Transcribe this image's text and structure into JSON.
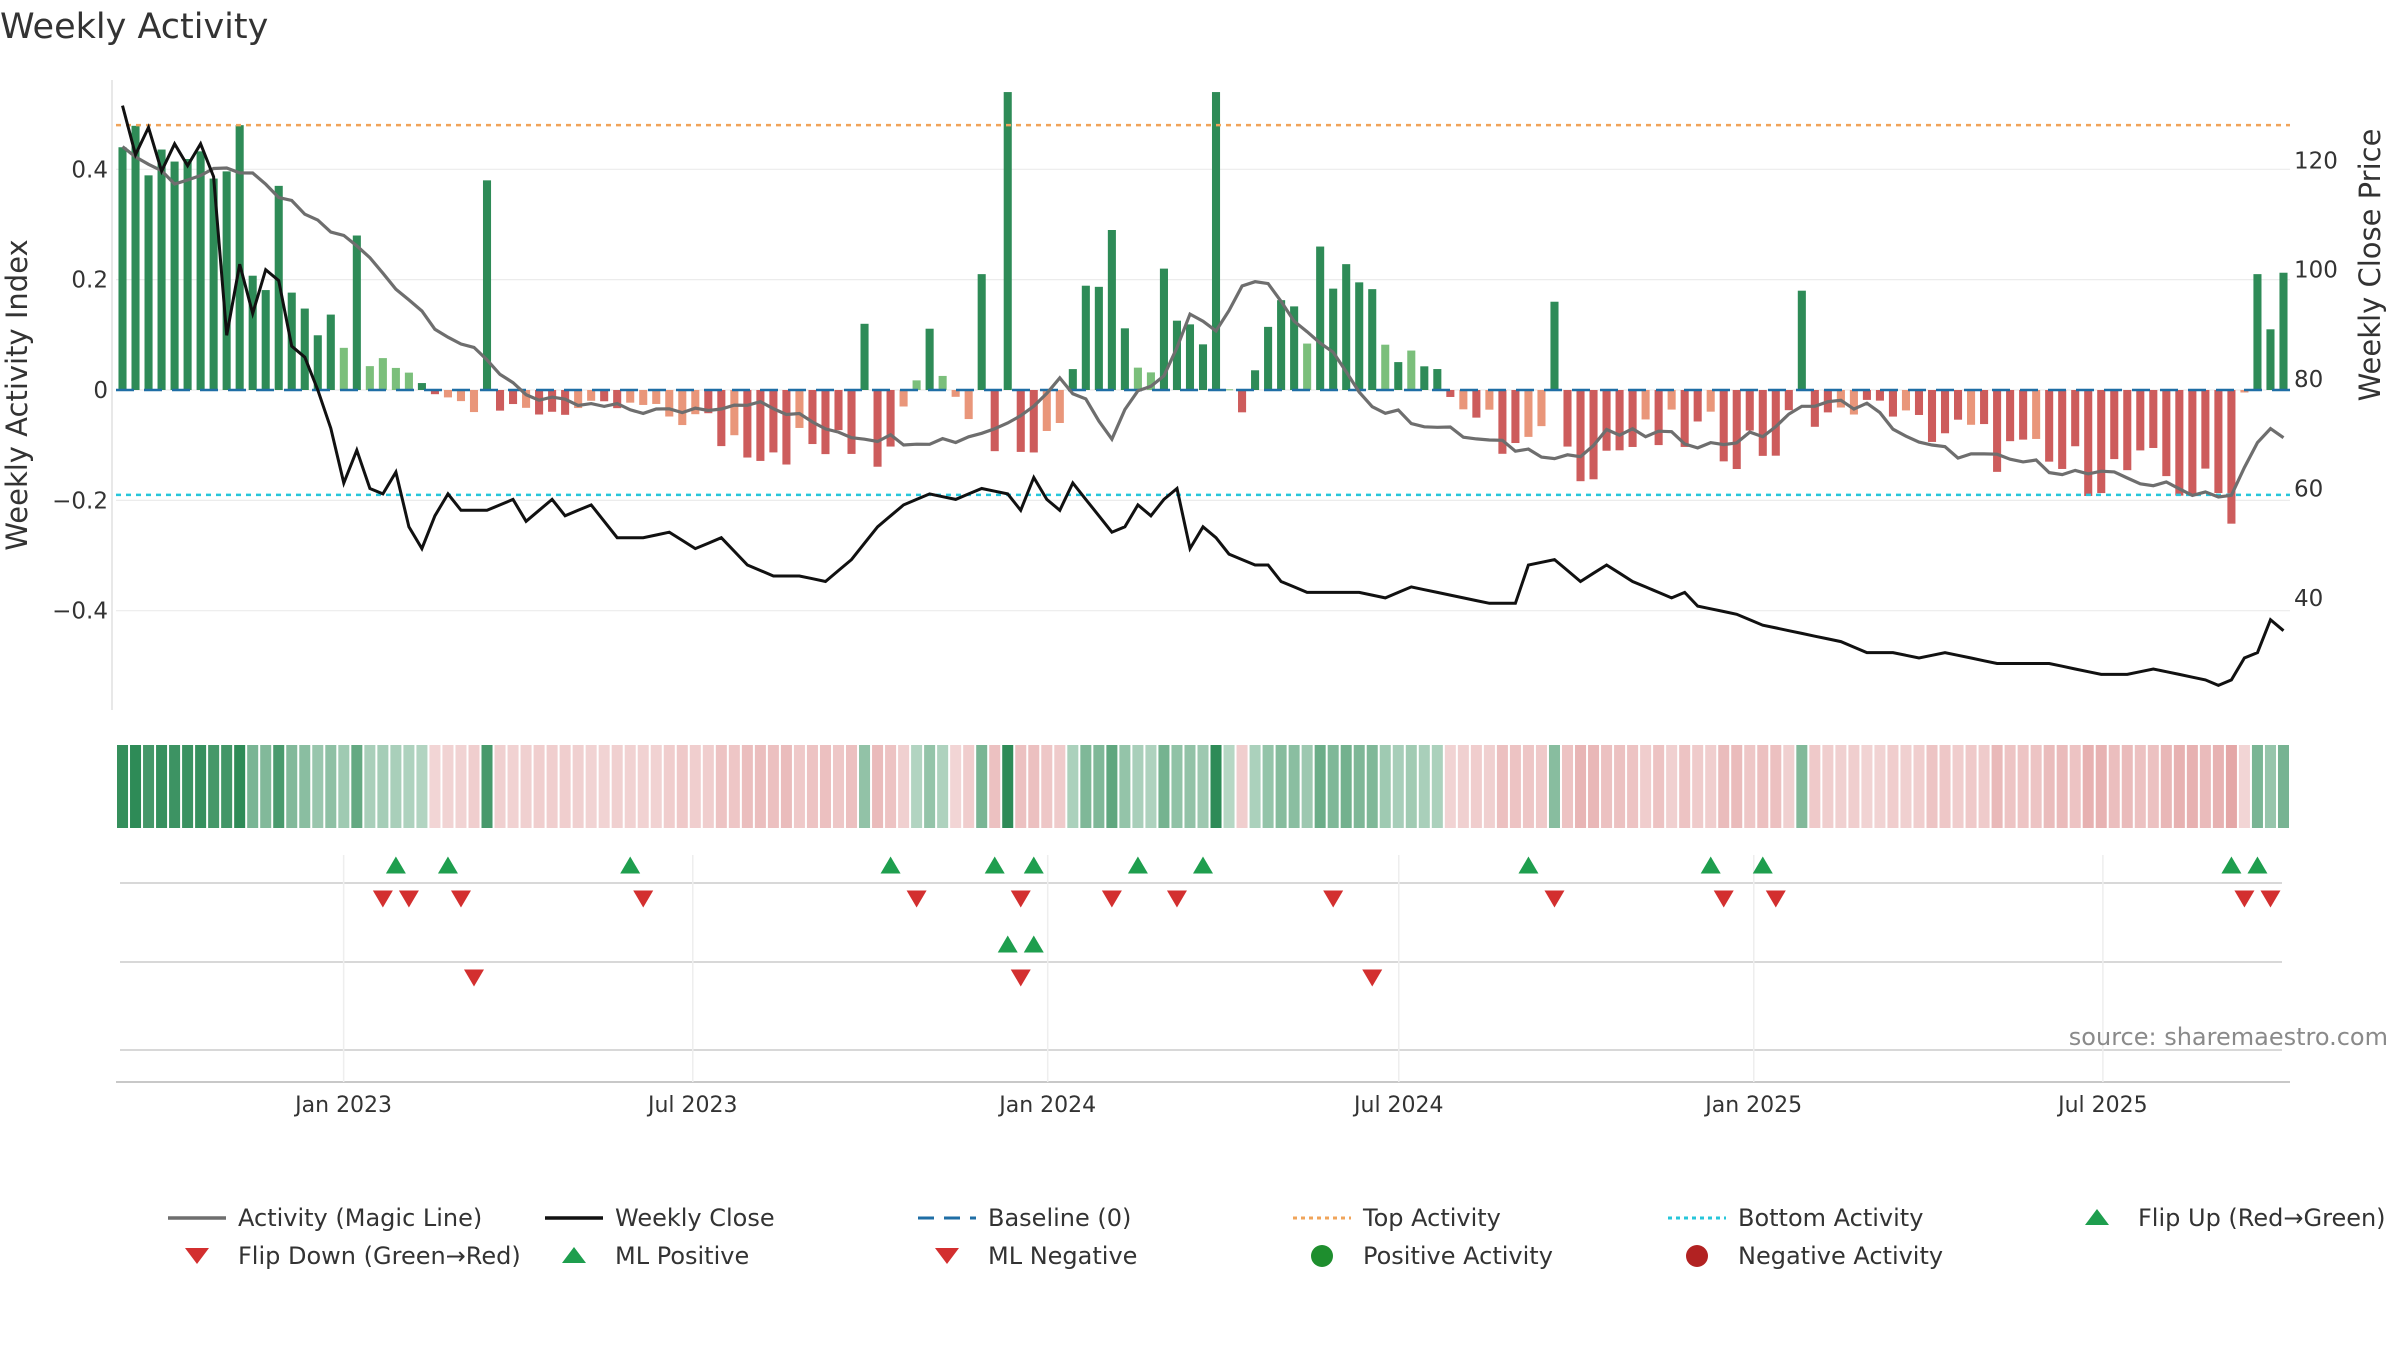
{
  "colors": {
    "green_dark": "#2e8b57",
    "green_light": "#7bbf7b",
    "red_dark": "#cd5c5c",
    "red_light": "#e9967a",
    "magic_line": "#6e6e6e",
    "close_line": "#111111",
    "baseline": "#1f6ea5",
    "top_line": "#f0a45a",
    "bottom_line": "#26c6da",
    "flip_up": "#1e9e4e",
    "flip_down": "#d32f2f",
    "ml_pos": "#1e9e4e",
    "ml_neg": "#d32f2f",
    "pos_activity": "#1e8e2e",
    "neg_activity": "#b22222"
  },
  "chart_data": {
    "type": "bar",
    "title": "Weekly Activity",
    "ylabel": "Weekly Activity Index",
    "y2label": "Weekly Close Price",
    "ylim": [
      -0.58,
      0.58
    ],
    "y2lim": [
      19.5,
      136.5
    ],
    "yticks": [
      0.4,
      0.2,
      0,
      -0.2,
      -0.4
    ],
    "ytick_labels": [
      "0.4",
      "0.2",
      "0",
      "−0.2",
      "−0.4"
    ],
    "y2ticks": [
      120,
      100,
      80,
      60,
      40
    ],
    "y2tick_labels": [
      "120",
      "100",
      "80",
      "60",
      "40"
    ],
    "x_start": "2022-09-05",
    "x_end": "2025-10-06",
    "xticks": [
      "2023-01-01",
      "2023-07-01",
      "2024-01-01",
      "2024-07-01",
      "2025-01-01",
      "2025-07-01"
    ],
    "xtick_labels": [
      "Jan 2023",
      "Jul 2023",
      "Jan 2024",
      "Jul 2024",
      "Jan 2025",
      "Jul 2025"
    ],
    "top_activity": 0.48,
    "bottom_activity": -0.19,
    "baseline": 0,
    "activity_series": [
      {
        "start": 0,
        "points": [
          [
            0,
            0.44
          ],
          [
            9,
            0.41
          ],
          [
            10,
            0.16
          ],
          [
            20,
            0.05
          ],
          [
            26,
            -0.02
          ],
          [
            30,
            -0.04
          ],
          [
            40,
            -0.03
          ],
          [
            46,
            -0.08
          ],
          [
            52,
            -0.1
          ],
          [
            58,
            -0.12
          ],
          [
            62,
            0.08
          ],
          [
            66,
            -0.08
          ],
          [
            70,
            -0.1
          ],
          [
            72,
            -0.05
          ],
          [
            74,
            0.22
          ],
          [
            78,
            0.05
          ],
          [
            82,
            0.16
          ],
          [
            84,
            0.05
          ],
          [
            86,
            -0.04
          ],
          [
            88,
            0.12
          ],
          [
            92,
            0.12
          ],
          [
            94,
            0.2
          ],
          [
            96,
            0.14
          ],
          [
            100,
            0.05
          ],
          [
            106,
            -0.1
          ],
          [
            112,
            -0.12
          ],
          [
            120,
            -0.08
          ],
          [
            126,
            -0.1
          ],
          [
            134,
            -0.02
          ],
          [
            142,
            -0.09
          ],
          [
            148,
            -0.14
          ],
          [
            156,
            -0.15
          ],
          [
            162,
            -0.2
          ],
          [
            164,
            0.19
          ]
        ]
      }
    ],
    "activity_overrides": [
      [
        68,
        0.54
      ],
      [
        84,
        0.54
      ],
      [
        9,
        0.48
      ],
      [
        0,
        0.44
      ],
      [
        18,
        0.28
      ],
      [
        28,
        0.38
      ],
      [
        76,
        0.29
      ],
      [
        92,
        0.26
      ],
      [
        80,
        0.22
      ],
      [
        12,
        0.37
      ],
      [
        66,
        0.21
      ],
      [
        129,
        0.18
      ],
      [
        110,
        0.16
      ],
      [
        57,
        0.12
      ],
      [
        164,
        0.21
      ],
      [
        165,
        0.11
      ]
    ],
    "magic_line_points": [
      [
        0,
        0.44
      ],
      [
        4,
        0.38
      ],
      [
        9,
        0.4
      ],
      [
        12,
        0.35
      ],
      [
        18,
        0.26
      ],
      [
        24,
        0.12
      ],
      [
        28,
        0.05
      ],
      [
        32,
        -0.02
      ],
      [
        36,
        -0.03
      ],
      [
        42,
        -0.04
      ],
      [
        48,
        -0.02
      ],
      [
        56,
        -0.08
      ],
      [
        60,
        -0.09
      ],
      [
        64,
        -0.09
      ],
      [
        68,
        -0.06
      ],
      [
        70,
        -0.02
      ],
      [
        72,
        0.02
      ],
      [
        74,
        -0.02
      ],
      [
        76,
        -0.08
      ],
      [
        78,
        0.0
      ],
      [
        80,
        0.03
      ],
      [
        82,
        0.14
      ],
      [
        84,
        0.11
      ],
      [
        86,
        0.18
      ],
      [
        88,
        0.2
      ],
      [
        90,
        0.12
      ],
      [
        94,
        0.04
      ],
      [
        96,
        -0.03
      ],
      [
        100,
        -0.06
      ],
      [
        104,
        -0.09
      ],
      [
        108,
        -0.11
      ],
      [
        112,
        -0.12
      ],
      [
        114,
        -0.08
      ],
      [
        118,
        -0.08
      ],
      [
        122,
        -0.1
      ],
      [
        126,
        -0.08
      ],
      [
        130,
        -0.02
      ],
      [
        134,
        -0.03
      ],
      [
        138,
        -0.1
      ],
      [
        142,
        -0.12
      ],
      [
        146,
        -0.13
      ],
      [
        150,
        -0.15
      ],
      [
        154,
        -0.16
      ],
      [
        158,
        -0.18
      ],
      [
        162,
        -0.19
      ],
      [
        164,
        -0.1
      ],
      [
        165,
        -0.07
      ],
      [
        166,
        -0.09
      ]
    ],
    "close_points": [
      [
        0,
        130
      ],
      [
        1,
        121
      ],
      [
        2,
        126
      ],
      [
        3,
        118
      ],
      [
        4,
        123
      ],
      [
        5,
        119
      ],
      [
        6,
        123
      ],
      [
        7,
        117
      ],
      [
        8,
        88
      ],
      [
        9,
        101
      ],
      [
        10,
        92
      ],
      [
        11,
        100
      ],
      [
        12,
        98
      ],
      [
        13,
        86
      ],
      [
        14,
        84
      ],
      [
        15,
        78
      ],
      [
        16,
        71
      ],
      [
        17,
        61
      ],
      [
        18,
        67
      ],
      [
        19,
        60
      ],
      [
        20,
        59
      ],
      [
        21,
        63
      ],
      [
        22,
        53
      ],
      [
        23,
        49
      ],
      [
        24,
        55
      ],
      [
        25,
        59
      ],
      [
        26,
        56
      ],
      [
        28,
        56
      ],
      [
        30,
        58
      ],
      [
        31,
        54
      ],
      [
        33,
        58
      ],
      [
        34,
        55
      ],
      [
        36,
        57
      ],
      [
        38,
        51
      ],
      [
        40,
        51
      ],
      [
        42,
        52
      ],
      [
        44,
        49
      ],
      [
        46,
        51
      ],
      [
        48,
        46
      ],
      [
        50,
        44
      ],
      [
        52,
        44
      ],
      [
        54,
        43
      ],
      [
        56,
        47
      ],
      [
        58,
        53
      ],
      [
        60,
        57
      ],
      [
        62,
        59
      ],
      [
        64,
        58
      ],
      [
        66,
        60
      ],
      [
        68,
        59
      ],
      [
        69,
        56
      ],
      [
        70,
        62
      ],
      [
        71,
        58
      ],
      [
        72,
        56
      ],
      [
        73,
        61
      ],
      [
        74,
        58
      ],
      [
        75,
        55
      ],
      [
        76,
        52
      ],
      [
        77,
        53
      ],
      [
        78,
        57
      ],
      [
        79,
        55
      ],
      [
        80,
        58
      ],
      [
        81,
        60
      ],
      [
        82,
        49
      ],
      [
        83,
        53
      ],
      [
        84,
        51
      ],
      [
        85,
        48
      ],
      [
        86,
        47
      ],
      [
        87,
        46
      ],
      [
        88,
        46
      ],
      [
        89,
        43
      ],
      [
        91,
        41
      ],
      [
        93,
        41
      ],
      [
        95,
        41
      ],
      [
        97,
        40
      ],
      [
        99,
        42
      ],
      [
        101,
        41
      ],
      [
        103,
        40
      ],
      [
        105,
        39
      ],
      [
        107,
        39
      ],
      [
        108,
        46
      ],
      [
        110,
        47
      ],
      [
        112,
        43
      ],
      [
        114,
        46
      ],
      [
        116,
        43
      ],
      [
        118,
        41
      ],
      [
        120,
        39
      ],
      [
        122,
        38
      ],
      [
        124,
        37
      ],
      [
        126,
        35
      ],
      [
        128,
        34
      ],
      [
        130,
        33
      ],
      [
        132,
        32
      ],
      [
        134,
        30
      ],
      [
        136,
        30
      ],
      [
        138,
        29
      ],
      [
        140,
        30
      ],
      [
        142,
        29
      ],
      [
        144,
        28
      ],
      [
        146,
        28
      ],
      [
        148,
        28
      ],
      [
        150,
        27
      ],
      [
        152,
        26
      ],
      [
        154,
        26
      ],
      [
        156,
        27
      ],
      [
        158,
        26
      ],
      [
        160,
        25
      ],
      [
        161,
        26
      ],
      [
        162,
        28
      ],
      [
        163,
        34
      ],
      [
        164,
        33
      ],
      [
        165,
        38
      ],
      [
        166,
        36
      ]
    ],
    "close_overrides": [
      [
        161,
        24
      ],
      [
        162,
        25
      ],
      [
        163,
        29
      ],
      [
        164,
        30
      ],
      [
        165,
        36
      ],
      [
        166,
        34
      ],
      [
        135,
        30
      ],
      [
        120,
        41
      ],
      [
        140,
        30
      ]
    ],
    "strip_note": "heatmap strip: one cell per week colored by activity sign and magnitude",
    "event_rows": [
      {
        "name": "flip-up",
        "marker": "up",
        "row": 0,
        "weeks": [
          21,
          25,
          39,
          59,
          67,
          70,
          78,
          83,
          108,
          122,
          126,
          162,
          164
        ]
      },
      {
        "name": "flip-down",
        "marker": "down",
        "row": 0,
        "weeks": [
          20,
          22,
          26,
          40,
          61,
          69,
          76,
          81,
          93,
          110,
          123,
          127,
          163,
          165
        ]
      },
      {
        "name": "ml-positive",
        "marker": "up",
        "row": 1,
        "weeks": [
          68,
          70
        ]
      },
      {
        "name": "ml-negative",
        "marker": "down",
        "row": 1,
        "weeks": [
          27,
          69,
          96
        ]
      }
    ],
    "source": "source: sharemaestro.com",
    "legend": [
      {
        "label": "Activity (Magic Line)",
        "kind": "line",
        "key": "magic_line"
      },
      {
        "label": "Weekly Close",
        "kind": "line",
        "key": "close_line"
      },
      {
        "label": "Baseline (0)",
        "kind": "dash",
        "key": "baseline"
      },
      {
        "label": "Top Activity",
        "kind": "dot",
        "key": "top_line"
      },
      {
        "label": "Bottom Activity",
        "kind": "dot",
        "key": "bottom_line"
      },
      {
        "label": "Flip Up (Red→Green)",
        "kind": "up",
        "key": "flip_up"
      },
      {
        "label": "Flip Down (Green→Red)",
        "kind": "down",
        "key": "flip_down"
      },
      {
        "label": "ML Positive",
        "kind": "up",
        "key": "ml_pos"
      },
      {
        "label": "ML Negative",
        "kind": "down",
        "key": "ml_neg"
      },
      {
        "label": "Positive Activity",
        "kind": "circle",
        "key": "pos_activity"
      },
      {
        "label": "Negative Activity",
        "kind": "circle",
        "key": "neg_activity"
      }
    ]
  }
}
